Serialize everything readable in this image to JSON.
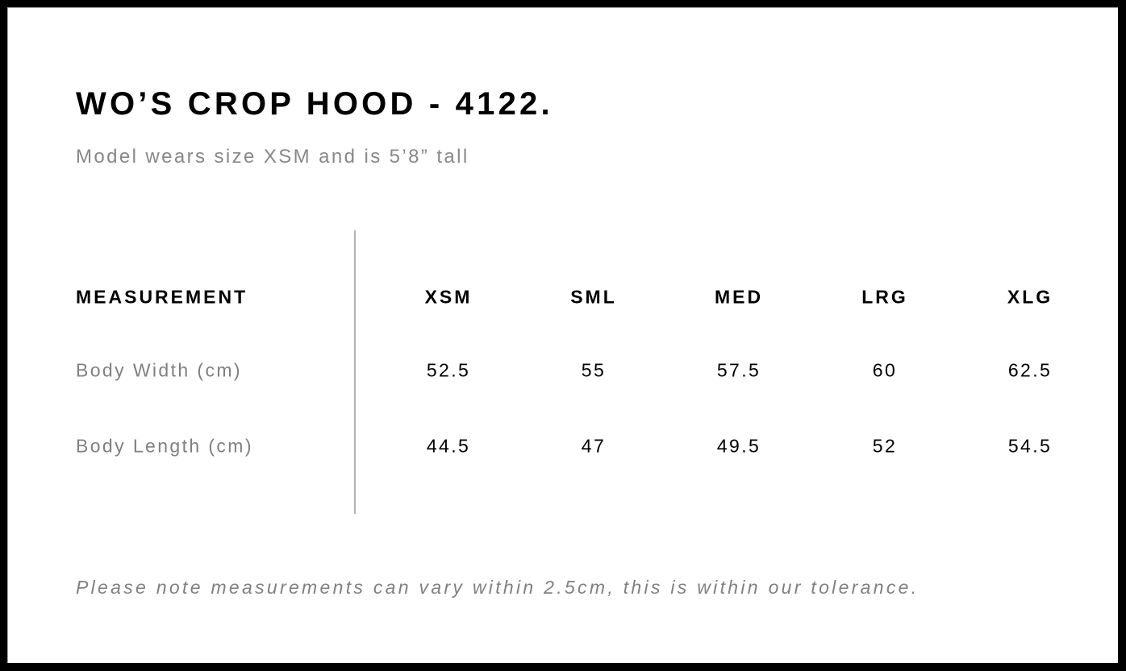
{
  "title": "WO’S CROP HOOD - 4122.",
  "subtitle": "Model wears size XSM and is 5’8” tall",
  "table": {
    "header_label": "MEASUREMENT",
    "sizes": [
      "XSM",
      "SML",
      "MED",
      "LRG",
      "XLG"
    ],
    "rows": [
      {
        "label": "Body Width (cm)",
        "values": [
          "52.5",
          "55",
          "57.5",
          "60",
          "62.5"
        ]
      },
      {
        "label": "Body Length (cm)",
        "values": [
          "44.5",
          "47",
          "49.5",
          "52",
          "54.5"
        ]
      }
    ]
  },
  "note": "Please note measurements can vary within 2.5cm, this is within our tolerance."
}
